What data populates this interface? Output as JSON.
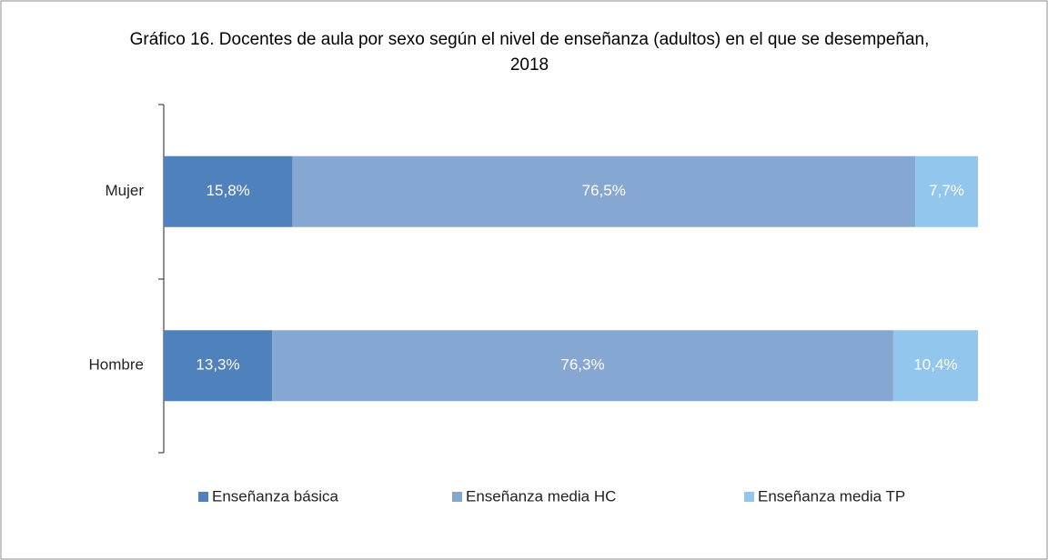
{
  "chart_data": {
    "type": "stacked-bar-horizontal",
    "title": "Gráfico 16. Docentes de aula por sexo según el nivel de enseñanza (adultos) en el que se desempeñan, 2018",
    "categories": [
      "Mujer",
      "Hombre"
    ],
    "xlim": [
      0,
      100
    ],
    "legend": "bottom",
    "series": [
      {
        "name": "Enseñanza básica",
        "color": "#4f81bd",
        "values": [
          15.8,
          13.3
        ],
        "value_labels": [
          "15,8%",
          "13,3%"
        ]
      },
      {
        "name": "Enseñanza media HC",
        "color": "#87a7d3",
        "values": [
          76.5,
          76.3
        ],
        "value_labels": [
          "76,5%",
          "76,3%"
        ]
      },
      {
        "name": "Enseñanza media TP",
        "color": "#93c6ec",
        "values": [
          7.7,
          10.4
        ],
        "value_labels": [
          "7,7%",
          "10,4%"
        ]
      }
    ]
  }
}
